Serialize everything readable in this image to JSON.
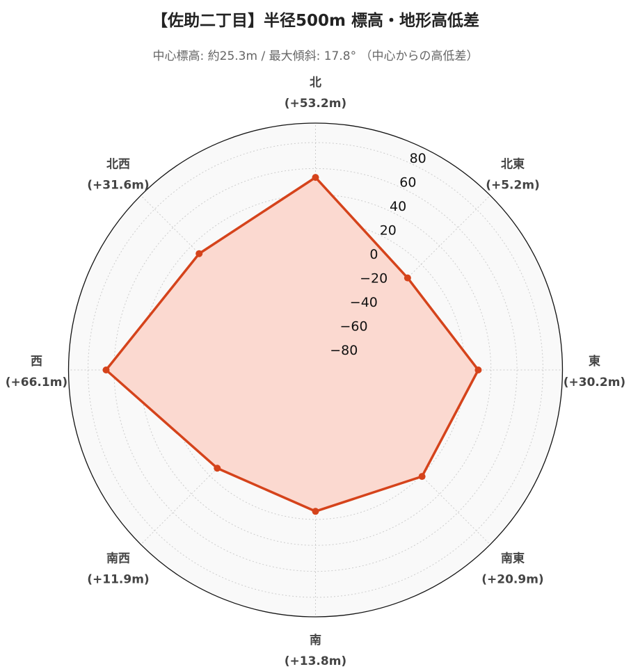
{
  "chart_data": {
    "type": "radar",
    "title": "【佐助二丁目】半径500m 標高・地形高低差",
    "subtitle": "中心標高: 約25.3m / 最大傾斜: 17.8° （中心からの高低差）",
    "rlim": [
      -95,
      95
    ],
    "rticks": [
      -80,
      -60,
      -40,
      -20,
      0,
      20,
      40,
      60,
      80
    ],
    "grid": true,
    "categories": [
      {
        "name": "北",
        "diff_label": "(+53.2m)"
      },
      {
        "name": "北東",
        "diff_label": "(+5.2m)"
      },
      {
        "name": "東",
        "diff_label": "(+30.2m)"
      },
      {
        "name": "南東",
        "diff_label": "(+20.9m)"
      },
      {
        "name": "南",
        "diff_label": "(+13.8m)"
      },
      {
        "name": "南西",
        "diff_label": "(+11.9m)"
      },
      {
        "name": "西",
        "diff_label": "(+66.1m)"
      },
      {
        "name": "北西",
        "diff_label": "(+31.6m)"
      }
    ],
    "series": [
      {
        "values": [
          53.2,
          5.2,
          30.2,
          20.9,
          13.8,
          11.9,
          66.1,
          31.6
        ],
        "color": "#d5431b",
        "fill": "#fbd9d0",
        "style": "solid",
        "markers": true
      },
      {
        "values": [
          0,
          0,
          0,
          0,
          0,
          0,
          0,
          0
        ],
        "color": "#888888",
        "style": "dashed",
        "markers": false
      }
    ]
  }
}
